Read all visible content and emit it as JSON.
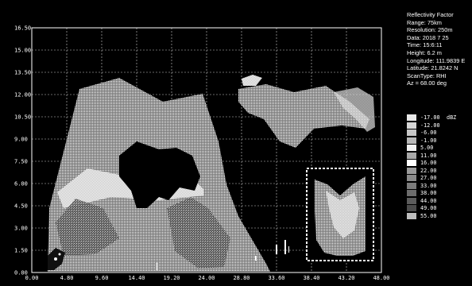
{
  "radar": {
    "x_ticks": [
      "0.00",
      "4.80",
      "9.60",
      "14.40",
      "19.20",
      "24.00",
      "28.80",
      "33.60",
      "38.40",
      "43.20",
      "48.00"
    ],
    "y_ticks": [
      "16.50",
      "15.00",
      "13.50",
      "12.00",
      "10.50",
      "9.00",
      "7.50",
      "6.00",
      "4.50",
      "3.00",
      "1.50",
      "0.00"
    ]
  },
  "info": {
    "title": "Reflectivity Factor",
    "range": "Range: 75km",
    "resolution": "Resolution: 250m",
    "date": "Data: 2018 7 25",
    "time": "Time: 15:6:11",
    "height": "Height:   6.2 m",
    "longitude": "Longitude: 111.9839 E",
    "latitude": "Latitude: 21.8242 N",
    "scantype": "ScanType: RHI",
    "azimuth": "Az = 68.00 deg"
  },
  "legend": {
    "unit": "dBZ",
    "entries": [
      {
        "label": "-17.00",
        "color": "#e8e8e8"
      },
      {
        "label": "-12.00",
        "color": "#d6d6d6"
      },
      {
        "label": "-6.00",
        "color": "#c6c6c6"
      },
      {
        "label": "-1.00",
        "color": "#b8b8b8"
      },
      {
        "label": "5.00",
        "color": "#f2f2f2"
      },
      {
        "label": "11.00",
        "color": "#a8a8a8"
      },
      {
        "label": "16.00",
        "color": "#ffffff"
      },
      {
        "label": "22.00",
        "color": "#9a9a9a"
      },
      {
        "label": "27.00",
        "color": "#8a8a8a"
      },
      {
        "label": "33.00",
        "color": "#7c7c7c"
      },
      {
        "label": "38.00",
        "color": "#6c6c6c"
      },
      {
        "label": "44.00",
        "color": "#5c5c5c"
      },
      {
        "label": "49.00",
        "color": "#4c4c4c"
      },
      {
        "label": "55.00",
        "color": "#bdbdbd"
      }
    ]
  }
}
